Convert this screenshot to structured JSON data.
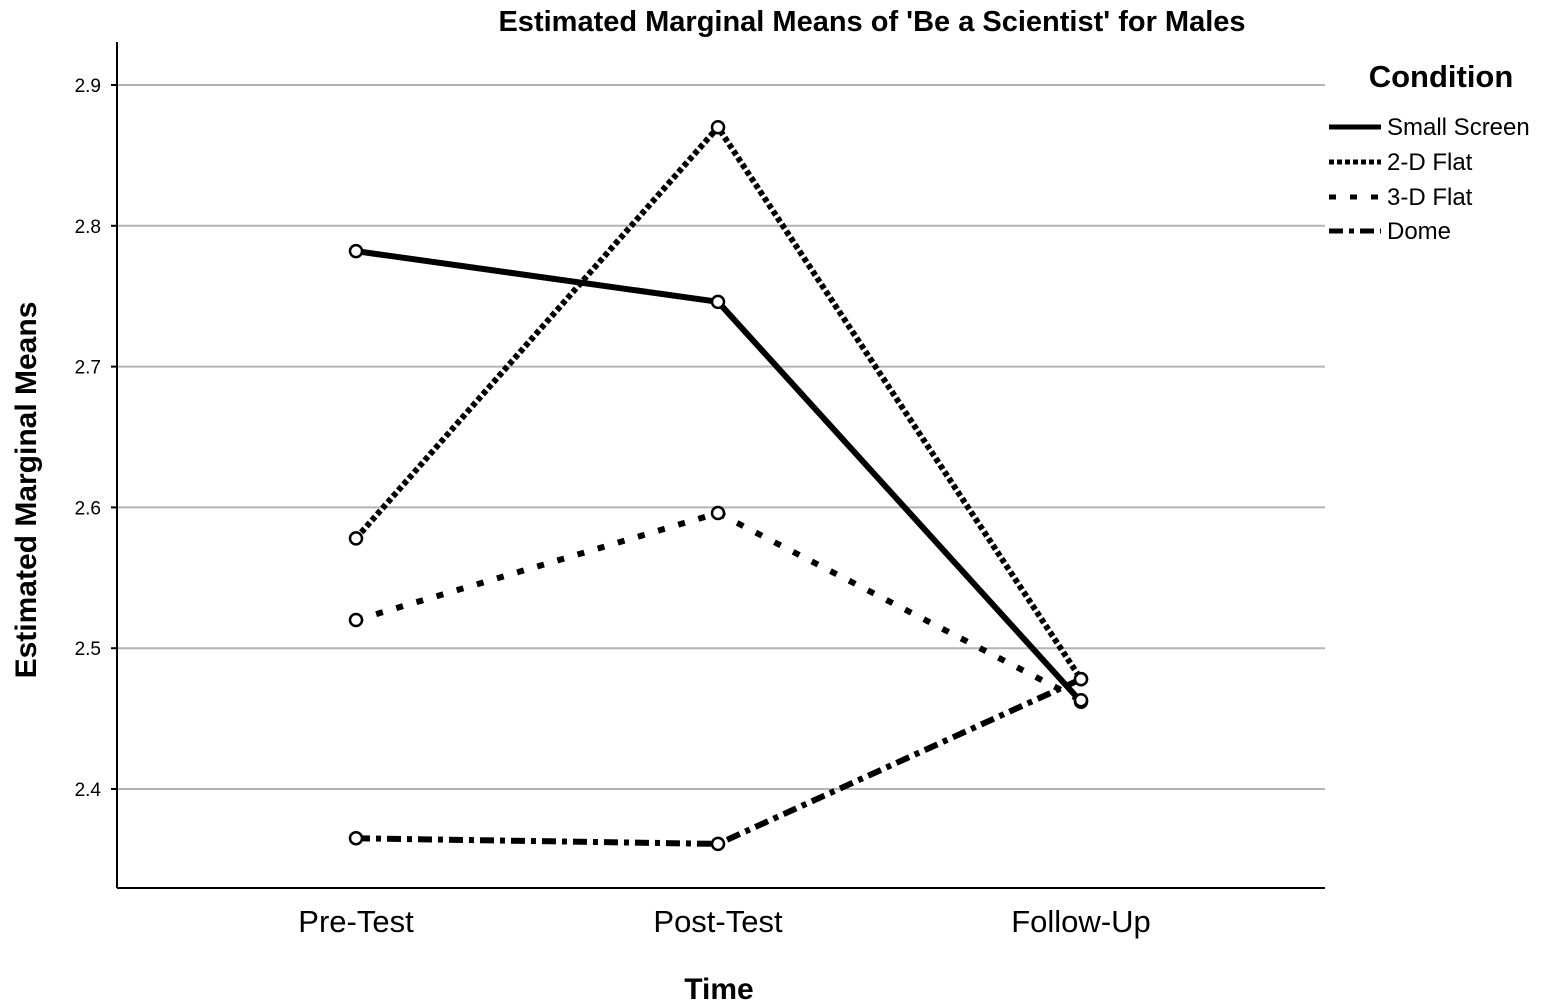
{
  "chart_data": {
    "type": "line",
    "title": "Estimated Marginal Means of 'Be a Scientist' for Males",
    "xlabel": "Time",
    "ylabel": "Estimated Marginal Means",
    "categories": [
      "Pre-Test",
      "Post-Test",
      "Follow-Up"
    ],
    "ylim": [
      2.32,
      2.94
    ],
    "yticks": [
      2.4,
      2.5,
      2.6,
      2.7,
      2.8,
      2.9
    ],
    "grid": true,
    "legend": {
      "title": "Condition",
      "placement": "top-right"
    },
    "series": [
      {
        "name": "Small Screen",
        "values": [
          2.782,
          2.746,
          2.462
        ],
        "dash": "solid"
      },
      {
        "name": "2-D Flat",
        "values": [
          2.578,
          2.87,
          2.478
        ],
        "dash": "dense-dot"
      },
      {
        "name": "3-D Flat",
        "values": [
          2.52,
          2.596,
          2.463
        ],
        "dash": "sparse-dot"
      },
      {
        "name": "Dome",
        "values": [
          2.365,
          2.361,
          2.478
        ],
        "dash": "dash-dot"
      }
    ]
  }
}
